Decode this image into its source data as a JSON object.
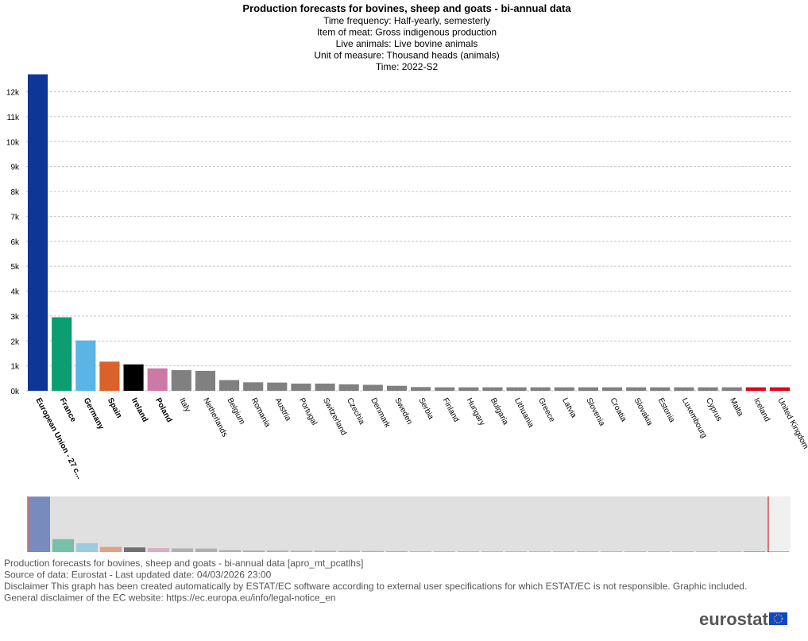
{
  "chart_data": {
    "type": "bar",
    "title": "Production forecasts for bovines, sheep and goats - bi-annual data",
    "subtitles": [
      "Time frequency:  Half-yearly, semesterly",
      "Item of meat:  Gross indigenous production",
      "Live animals:  Live bovine animals",
      "Unit of measure:  Thousand heads (animals)",
      "Time:  2022-S2"
    ],
    "categories": [
      "European Union - 27 c...",
      "France",
      "Germany",
      "Spain",
      "Ireland",
      "Poland",
      "Italy",
      "Netherlands",
      "Belgium",
      "Romania",
      "Austria",
      "Portugal",
      "Switzerland",
      "Czechia",
      "Denmark",
      "Sweden",
      "Serbia",
      "Finland",
      "Hungary",
      "Bulgaria",
      "Lithuania",
      "Greece",
      "Latvia",
      "Slovenia",
      "Croatia",
      "Slovakia",
      "Estonia",
      "Luxembourg",
      "Cyprus",
      "Malta",
      "Iceland",
      "United Kingdom"
    ],
    "values": [
      12700,
      2950,
      2020,
      1170,
      1060,
      900,
      830,
      800,
      430,
      340,
      330,
      290,
      290,
      260,
      240,
      200,
      150,
      140,
      140,
      140,
      140,
      140,
      140,
      140,
      140,
      140,
      140,
      140,
      140,
      140,
      140,
      140
    ],
    "colors": [
      "#0e3697",
      "#0b9e71",
      "#5ab4e5",
      "#d9622b",
      "#000000",
      "#cc79a7",
      "#808080",
      "#808080",
      "#808080",
      "#808080",
      "#808080",
      "#808080",
      "#808080",
      "#808080",
      "#808080",
      "#808080",
      "#808080",
      "#808080",
      "#808080",
      "#808080",
      "#808080",
      "#808080",
      "#808080",
      "#808080",
      "#808080",
      "#808080",
      "#808080",
      "#808080",
      "#808080",
      "#808080",
      "#e2001a",
      "#e2001a"
    ],
    "ylim": [
      0,
      12750
    ],
    "yticks": [
      {
        "value": 0,
        "label": "0k"
      },
      {
        "value": 1000,
        "label": "1k"
      },
      {
        "value": 2000,
        "label": "2k"
      },
      {
        "value": 3000,
        "label": "3k"
      },
      {
        "value": 4000,
        "label": "4k"
      },
      {
        "value": 5000,
        "label": "5k"
      },
      {
        "value": 6000,
        "label": "6k"
      },
      {
        "value": 7000,
        "label": "7k"
      },
      {
        "value": 8000,
        "label": "8k"
      },
      {
        "value": 9000,
        "label": "9k"
      },
      {
        "value": 10000,
        "label": "10k"
      },
      {
        "value": 11000,
        "label": "11k"
      },
      {
        "value": 12000,
        "label": "12k"
      }
    ],
    "grid": true
  },
  "footer": [
    "Production forecasts for bovines, sheep and goats - bi-annual data [apro_mt_pcatlhs]",
    "Source of data: Eurostat - Last updated date: 04/03/2026 23:00",
    "Disclaimer This graph has been created automatically by ESTAT/EC software according to external user specifications for which ESTAT/EC is not responsible. Graphic included.",
    "General disclaimer of the EC website: https://ec.europa.eu/info/legal-notice_en"
  ],
  "logo": "eurostat"
}
